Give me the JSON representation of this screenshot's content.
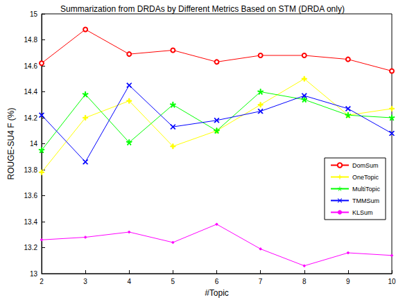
{
  "chart_data": {
    "type": "line",
    "title": "Summarization from DRDAs by Different Metrics Based on STM (DRDA only)",
    "x_label": "#Topic",
    "y_label": "ROUGE-SU4 F (%)",
    "x": [
      2,
      3,
      4,
      5,
      6,
      7,
      8,
      9,
      10
    ],
    "xlim": [
      2,
      10
    ],
    "xticks": [
      2,
      3,
      4,
      5,
      6,
      7,
      8,
      9,
      10
    ],
    "ylim": [
      13,
      15
    ],
    "yticks": [
      13,
      13.2,
      13.4,
      13.6,
      13.8,
      14,
      14.2,
      14.4,
      14.6,
      14.8,
      15
    ],
    "grid": false,
    "legend": "right",
    "series": [
      {
        "name": "DomSum",
        "color": "#ff0000",
        "marker": "circle",
        "line_style": "solid",
        "values": [
          14.62,
          14.88,
          14.69,
          14.72,
          14.63,
          14.68,
          14.68,
          14.65,
          14.56
        ]
      },
      {
        "name": "OneTopic",
        "color": "#ffff00",
        "marker": "plus",
        "line_style": "solid",
        "values": [
          13.78,
          14.2,
          14.33,
          13.98,
          14.1,
          14.3,
          14.5,
          14.22,
          14.27
        ]
      },
      {
        "name": "MultiTopic",
        "color": "#00ff00",
        "marker": "star",
        "line_style": "solid",
        "values": [
          13.95,
          14.38,
          14.01,
          14.3,
          14.1,
          14.4,
          14.34,
          14.22,
          14.2
        ]
      },
      {
        "name": "TMMSum",
        "color": "#0000ff",
        "marker": "x",
        "line_style": "solid",
        "values": [
          14.22,
          13.86,
          14.45,
          14.13,
          14.18,
          14.25,
          14.37,
          14.27,
          14.08
        ]
      },
      {
        "name": "KLSum",
        "color": "#ff00ff",
        "marker": "dot",
        "line_style": "solid",
        "values": [
          13.26,
          13.28,
          13.32,
          13.24,
          13.38,
          13.19,
          13.06,
          13.16,
          13.14
        ]
      }
    ]
  }
}
